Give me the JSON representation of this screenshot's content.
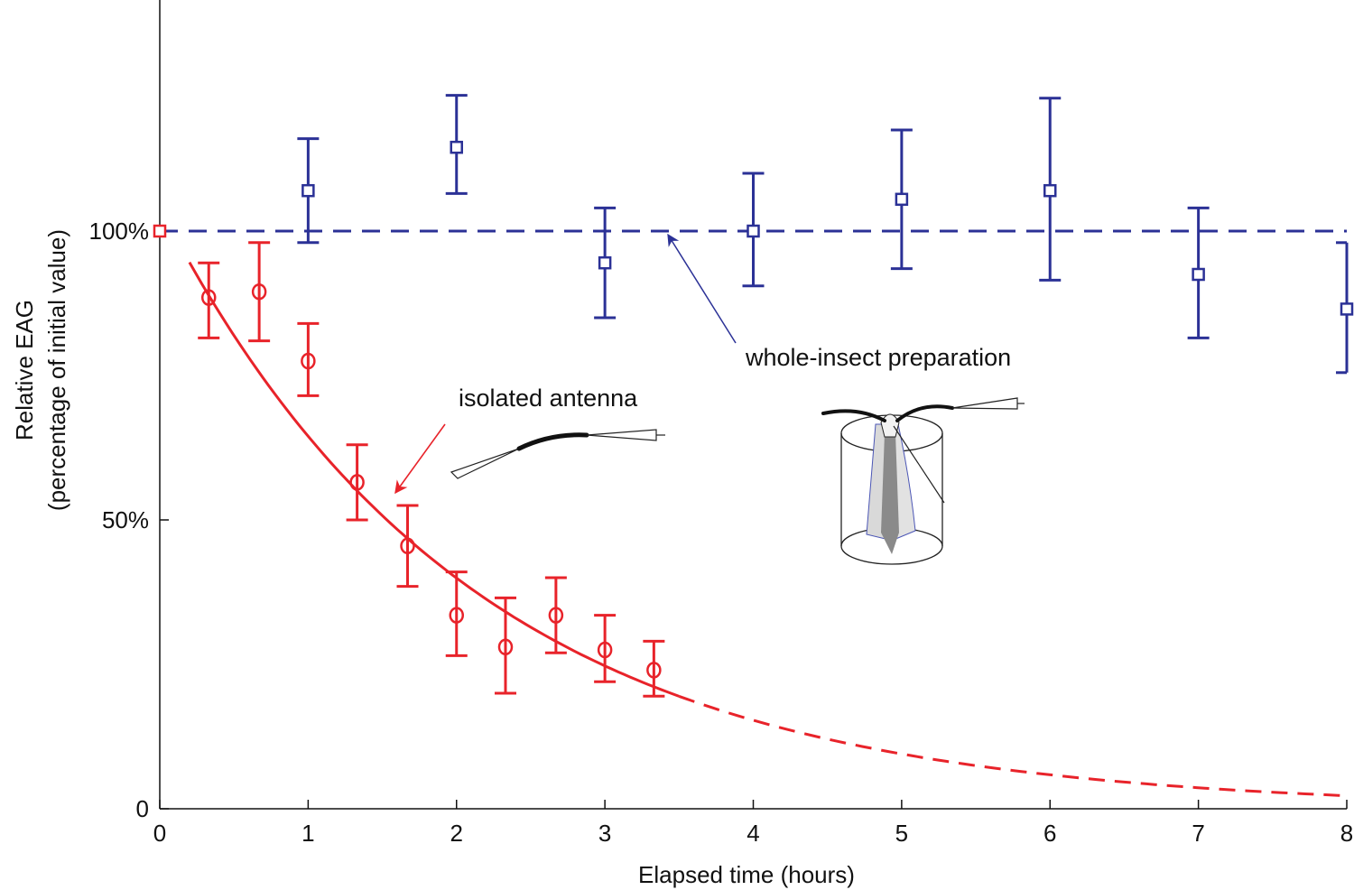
{
  "chart_data": {
    "type": "scatter",
    "title": "",
    "xlabel": "Elapsed time (hours)",
    "ylabel": "Relative EAG",
    "ylabel_sub": "(percentage of initial value)",
    "xlim": [
      0,
      8
    ],
    "ylim": [
      0,
      140
    ],
    "x_ticks": [
      {
        "value": 0,
        "label": "0"
      },
      {
        "value": 1,
        "label": "1"
      },
      {
        "value": 2,
        "label": "2"
      },
      {
        "value": 3,
        "label": "3"
      },
      {
        "value": 4,
        "label": "4"
      },
      {
        "value": 5,
        "label": "5"
      },
      {
        "value": 6,
        "label": "6"
      },
      {
        "value": 7,
        "label": "7"
      },
      {
        "value": 8,
        "label": "8"
      }
    ],
    "y_ticks": [
      {
        "value": 0,
        "label": "0"
      },
      {
        "value": 50,
        "label": "50%"
      },
      {
        "value": 100,
        "label": "100%"
      }
    ],
    "grid": false,
    "series": [
      {
        "name": "whole-insect preparation",
        "color": "#2b3196",
        "marker": "square",
        "points": [
          {
            "x": 0,
            "y": 100,
            "err_low": 0,
            "err_high": 0
          },
          {
            "x": 1,
            "y": 107,
            "err_low": 98,
            "err_high": 116
          },
          {
            "x": 2,
            "y": 114.5,
            "err_low": 106.5,
            "err_high": 123.5
          },
          {
            "x": 3,
            "y": 94.5,
            "err_low": 85,
            "err_high": 104
          },
          {
            "x": 4,
            "y": 100,
            "err_low": 90.5,
            "err_high": 110
          },
          {
            "x": 5,
            "y": 105.5,
            "err_low": 93.5,
            "err_high": 117.5
          },
          {
            "x": 6,
            "y": 107,
            "err_low": 91.5,
            "err_high": 123
          },
          {
            "x": 7,
            "y": 92.5,
            "err_low": 81.5,
            "err_high": 104
          },
          {
            "x": 8,
            "y": 86.5,
            "err_low": 75.5,
            "err_high": 98
          }
        ],
        "reference_line": {
          "y": 100,
          "style": "dashed"
        }
      },
      {
        "name": "isolated antenna",
        "color": "#e8232a",
        "marker": "circle",
        "points": [
          {
            "x": 0,
            "y": 100,
            "err_low": 0,
            "err_high": 0
          },
          {
            "x": 0.33,
            "y": 88.5,
            "err_low": 81.5,
            "err_high": 94.5
          },
          {
            "x": 0.67,
            "y": 89.5,
            "err_low": 81,
            "err_high": 98
          },
          {
            "x": 1,
            "y": 77.5,
            "err_low": 71.5,
            "err_high": 84
          },
          {
            "x": 1.33,
            "y": 56.5,
            "err_low": 50,
            "err_high": 63
          },
          {
            "x": 1.67,
            "y": 45.5,
            "err_low": 38.5,
            "err_high": 52.5
          },
          {
            "x": 2,
            "y": 33.5,
            "err_low": 26.5,
            "err_high": 41
          },
          {
            "x": 2.33,
            "y": 28,
            "err_low": 20,
            "err_high": 36.5
          },
          {
            "x": 2.67,
            "y": 33.5,
            "err_low": 27,
            "err_high": 40
          },
          {
            "x": 3,
            "y": 27.5,
            "err_low": 22,
            "err_high": 33.5
          },
          {
            "x": 3.33,
            "y": 24,
            "err_low": 19.5,
            "err_high": 29
          }
        ],
        "fit_curve": {
          "model": "exponential decay",
          "amplitude": 104.1,
          "rate_per_hour": 0.479,
          "solid_range": [
            0.2,
            3.5
          ],
          "dashed_range": [
            3.5,
            8
          ]
        }
      }
    ],
    "annotations": [
      {
        "text": "whole-insect preparation",
        "points_to": {
          "x": 3.45,
          "y": 100
        }
      },
      {
        "text": "isolated antenna",
        "points_to": {
          "x": 1.58,
          "y": 54
        }
      }
    ]
  }
}
